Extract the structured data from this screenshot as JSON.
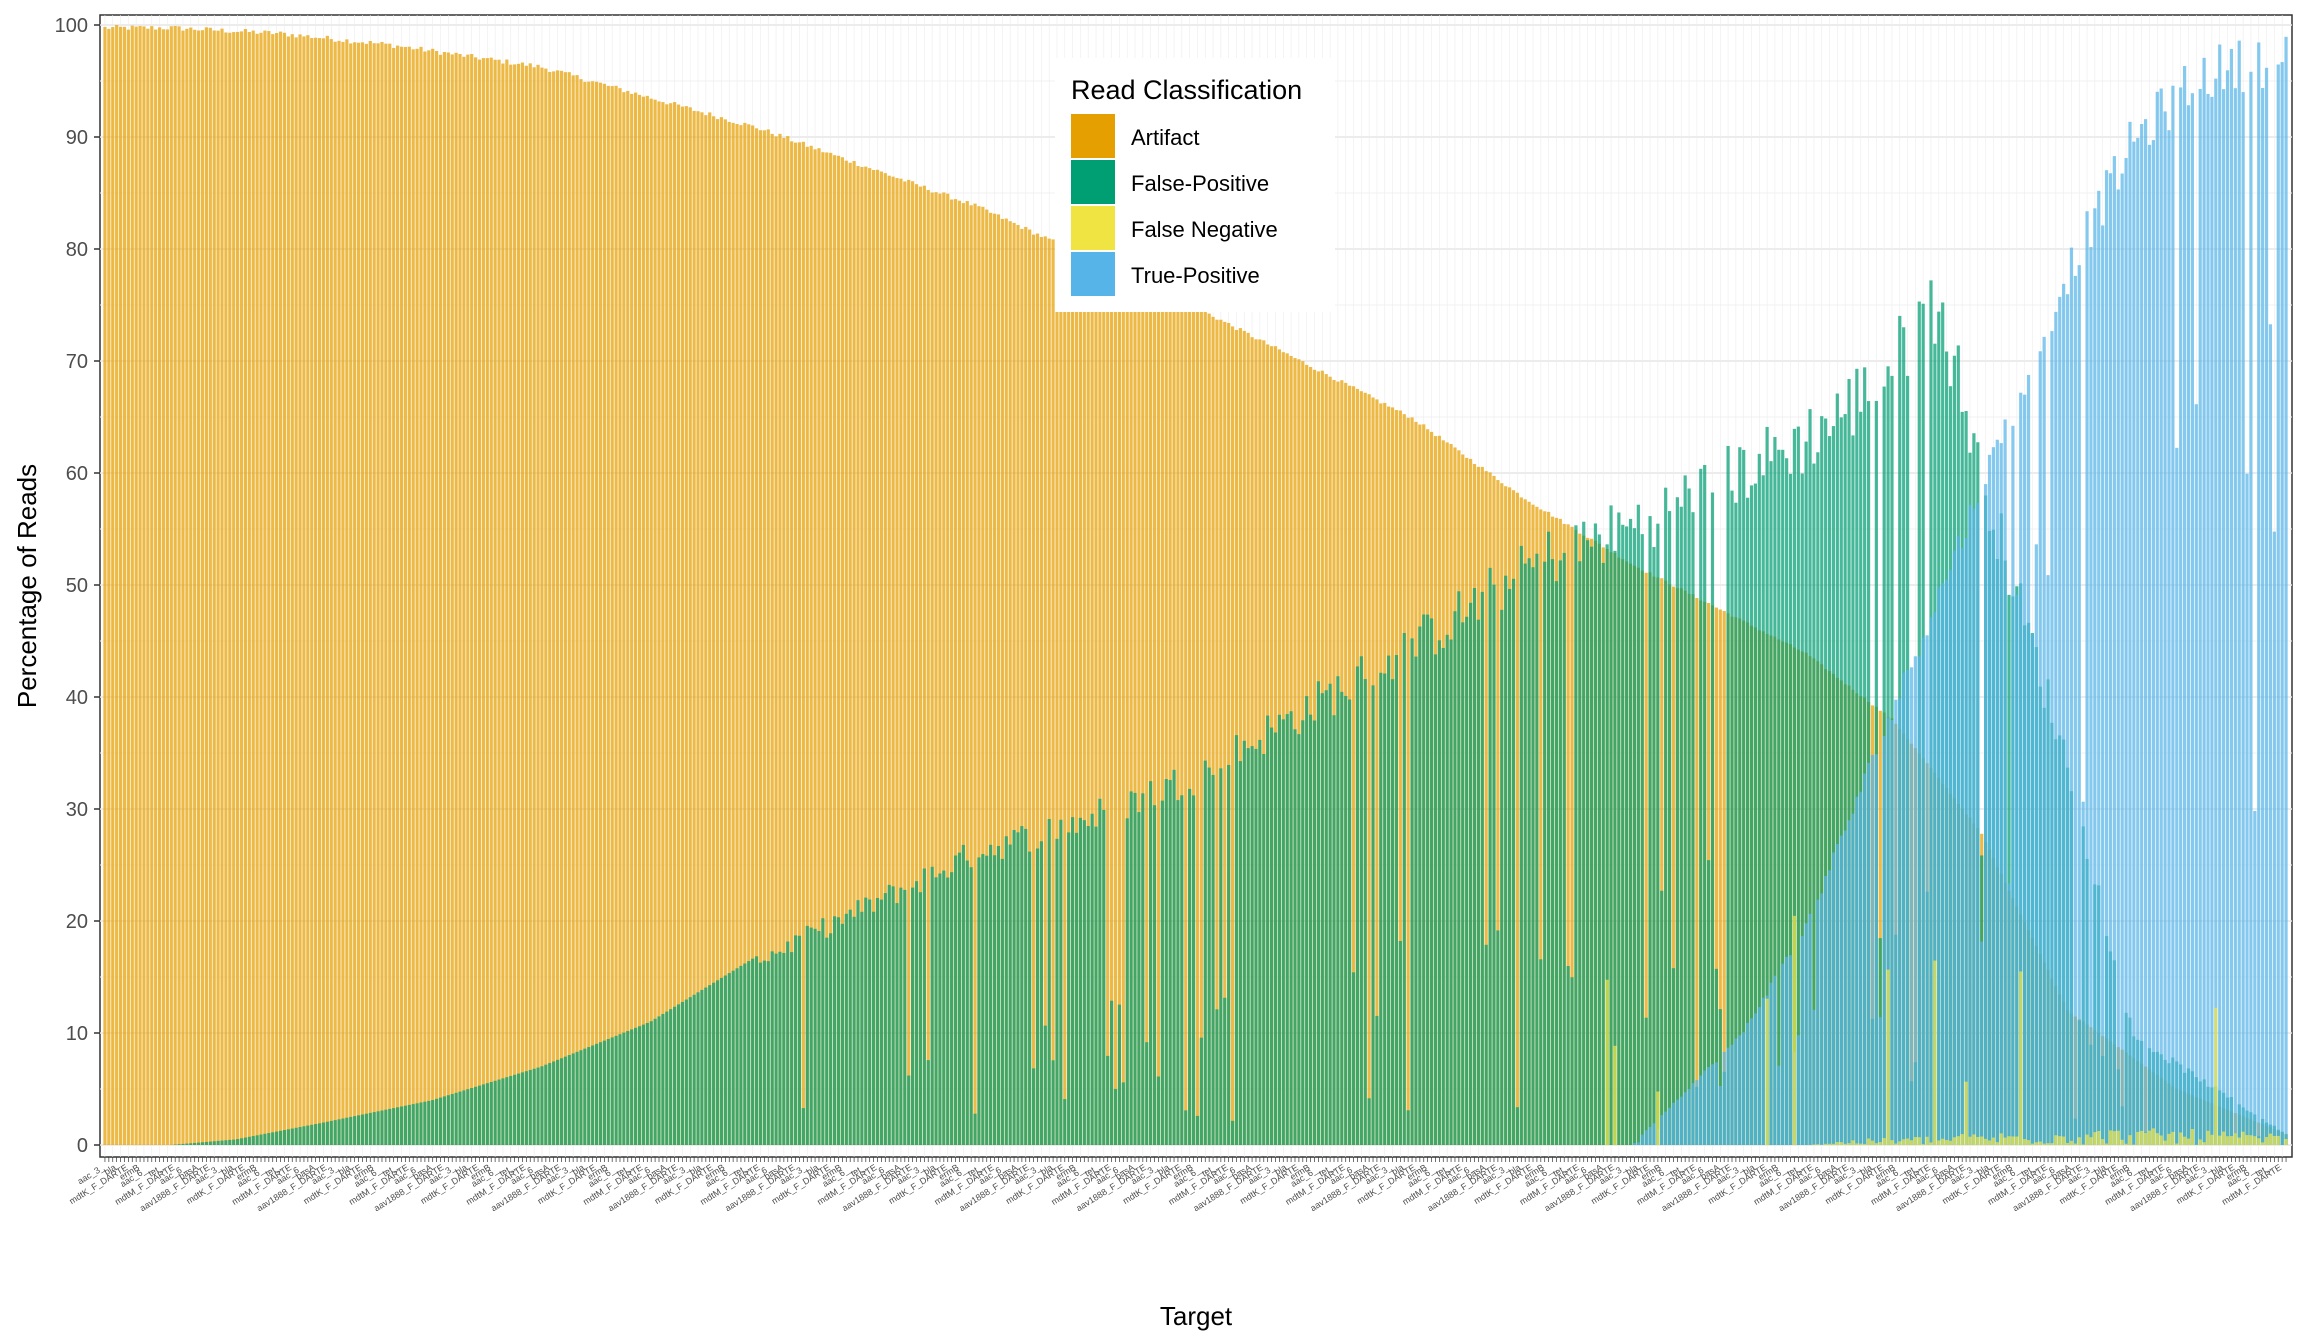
{
  "chart_data": {
    "type": "bar",
    "stacked": false,
    "overlapping": true,
    "xlabel": "Target",
    "ylabel": "Percentage of Reads",
    "ylim": [
      0,
      100
    ],
    "yticks": [
      0,
      10,
      20,
      30,
      40,
      50,
      60,
      70,
      80,
      90,
      100
    ],
    "grid": true,
    "n_categories": 560,
    "x_tick_label_samples": [
      "aac_3_",
      "aac_6_",
      "aac_6__",
      "bla",
      "basA",
      "tet_",
      "mdtK_F_DARTE",
      "aav1888_F_DARTE",
      "mdtM_F_DARTE",
      "ermB"
    ],
    "legend": {
      "title": "Read Classification",
      "position": "top-center",
      "entries": [
        {
          "label": "Artifact",
          "color": "#E69F00"
        },
        {
          "label": "False-Positive",
          "color": "#009E73"
        },
        {
          "label": "False Negative",
          "color": "#F0E442"
        },
        {
          "label": "True-Positive",
          "color": "#56B4E9"
        }
      ]
    },
    "series": [
      {
        "name": "Artifact",
        "color": "#E69F00",
        "profile_x": [
          0,
          0.03,
          0.08,
          0.13,
          0.2,
          0.3,
          0.4,
          0.5,
          0.57,
          0.6,
          0.65,
          0.7,
          0.74,
          0.78,
          0.82,
          0.86,
          0.9,
          0.95,
          1.0
        ],
        "profile_y": [
          100,
          100,
          99.5,
          98.5,
          96.5,
          91,
          84,
          75,
          68,
          65,
          58,
          52,
          48,
          44,
          38,
          28,
          12,
          5,
          1
        ]
      },
      {
        "name": "False-Positive",
        "color": "#009E73",
        "profile_x": [
          0,
          0.03,
          0.06,
          0.1,
          0.15,
          0.2,
          0.25,
          0.3,
          0.35,
          0.4,
          0.45,
          0.5,
          0.55,
          0.6,
          0.63,
          0.66,
          0.7,
          0.75,
          0.78,
          0.8,
          0.82,
          0.84,
          0.87,
          0.9,
          0.93,
          1.0
        ],
        "profile_y": [
          0,
          0,
          0.5,
          2,
          4,
          7,
          11,
          17,
          22,
          27,
          30,
          34,
          40,
          46,
          50,
          54,
          57,
          62,
          65,
          68,
          72,
          78,
          55,
          35,
          10,
          1
        ]
      },
      {
        "name": "True-Positive",
        "color": "#56B4E9",
        "profile_x": [
          0,
          0.7,
          0.75,
          0.78,
          0.8,
          0.83,
          0.86,
          0.9,
          0.93,
          0.96,
          1.0
        ],
        "profile_y": [
          0,
          0,
          10,
          20,
          30,
          45,
          60,
          80,
          92,
          98,
          99.8
        ]
      },
      {
        "name": "False Negative",
        "color": "#F0E442",
        "profile_x": [
          0,
          0.78,
          0.8,
          0.85,
          0.9,
          0.95,
          1.0
        ],
        "profile_y": [
          0,
          0,
          0.5,
          1,
          1.5,
          1.5,
          1
        ]
      }
    ]
  }
}
